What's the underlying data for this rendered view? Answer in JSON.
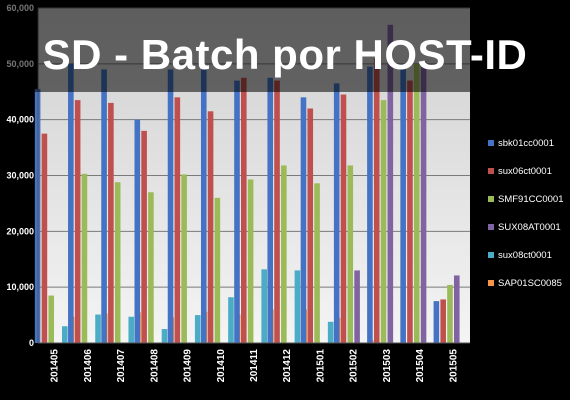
{
  "overlay": {
    "title": "SD - Batch por HOST-ID"
  },
  "chart_data": {
    "type": "bar",
    "categories": [
      "201405",
      "201406",
      "201407",
      "201408",
      "201409",
      "201410",
      "201411",
      "201412",
      "201501",
      "201502",
      "201503",
      "201504",
      "201505"
    ],
    "ylim": [
      0,
      60000
    ],
    "yticks": [
      0,
      10000,
      20000,
      30000,
      40000,
      50000,
      60000
    ],
    "ytick_labels": [
      "0",
      "10,000",
      "20,000",
      "30,000",
      "40,000",
      "50,000",
      "60,000"
    ],
    "grid": true,
    "legend_position": "right",
    "series": [
      {
        "name": "sbk01cc0001",
        "color": "#4472c4",
        "values": [
          45500,
          50000,
          49000,
          40000,
          49000,
          49000,
          47000,
          47500,
          44000,
          46500,
          49500,
          50000,
          7500
        ]
      },
      {
        "name": "sux06ct0001",
        "color": "#c0504d",
        "values": [
          37500,
          43500,
          43000,
          38000,
          44000,
          41500,
          47500,
          47000,
          42000,
          44500,
          51000,
          47000,
          7800
        ]
      },
      {
        "name": "SMF91CC0001",
        "color": "#9bbb59",
        "values": [
          8500,
          30300,
          28800,
          27000,
          30200,
          26000,
          29300,
          31800,
          28600,
          31800,
          43500,
          50000,
          10400
        ]
      },
      {
        "name": "SUX08AT0001",
        "color": "#8064a2",
        "values": [
          0,
          0,
          0,
          0,
          0,
          0,
          0,
          0,
          0,
          13000,
          57000,
          50500,
          12100
        ]
      },
      {
        "name": "sux08ct0001",
        "color": "#4bacc6",
        "values": [
          3000,
          5100,
          4700,
          2500,
          5000,
          8200,
          13200,
          13000,
          3800,
          0,
          0,
          0,
          0
        ]
      },
      {
        "name": "SAP01SC0085",
        "color": "#f79646",
        "values": [
          4700,
          5300,
          5500,
          4600,
          5600,
          5100,
          6000,
          6000,
          4500,
          500,
          0,
          0,
          0
        ]
      }
    ]
  }
}
